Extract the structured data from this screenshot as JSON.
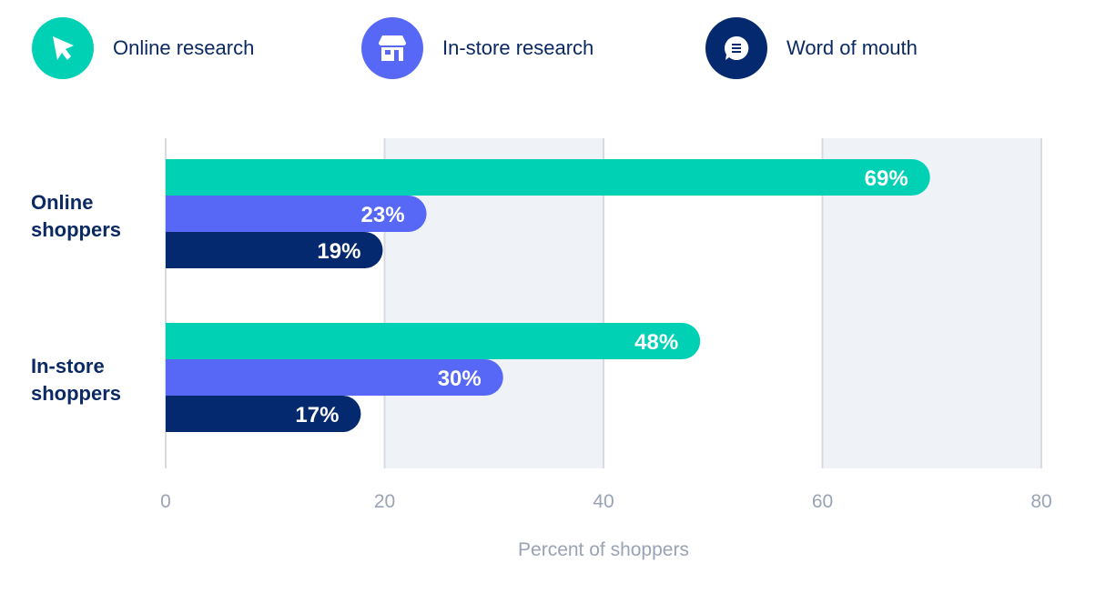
{
  "legend": [
    {
      "label": "Online research",
      "icon": "cursor-arrow-icon",
      "color": "#00d1b5"
    },
    {
      "label": "In-store research",
      "icon": "storefront-icon",
      "color": "#5668f5"
    },
    {
      "label": "Word of mouth",
      "icon": "chat-bubble-icon",
      "color": "#04296e"
    }
  ],
  "chart_data": {
    "type": "bar",
    "orientation": "horizontal",
    "categories": [
      "Online shoppers",
      "In-store shoppers"
    ],
    "category_lines": [
      [
        "Online",
        "shoppers"
      ],
      [
        "In-store",
        "shoppers"
      ]
    ],
    "series": [
      {
        "name": "Online research",
        "values": [
          69,
          48
        ],
        "labels": [
          "69%",
          "48%"
        ],
        "color": "#00d1b5"
      },
      {
        "name": "In-store research",
        "values": [
          23,
          30
        ],
        "labels": [
          "23%",
          "30%"
        ],
        "color": "#5668f5"
      },
      {
        "name": "Word of mouth",
        "values": [
          19,
          17
        ],
        "labels": [
          "19%",
          "17%"
        ],
        "color": "#04296e"
      }
    ],
    "xlabel": "Percent of shoppers",
    "xlim": [
      0,
      80
    ],
    "xticks": [
      0,
      20,
      40,
      60,
      80
    ],
    "xtick_labels": [
      "0",
      "20",
      "40",
      "60",
      "80"
    ],
    "grid": true,
    "legend_position": "top"
  }
}
